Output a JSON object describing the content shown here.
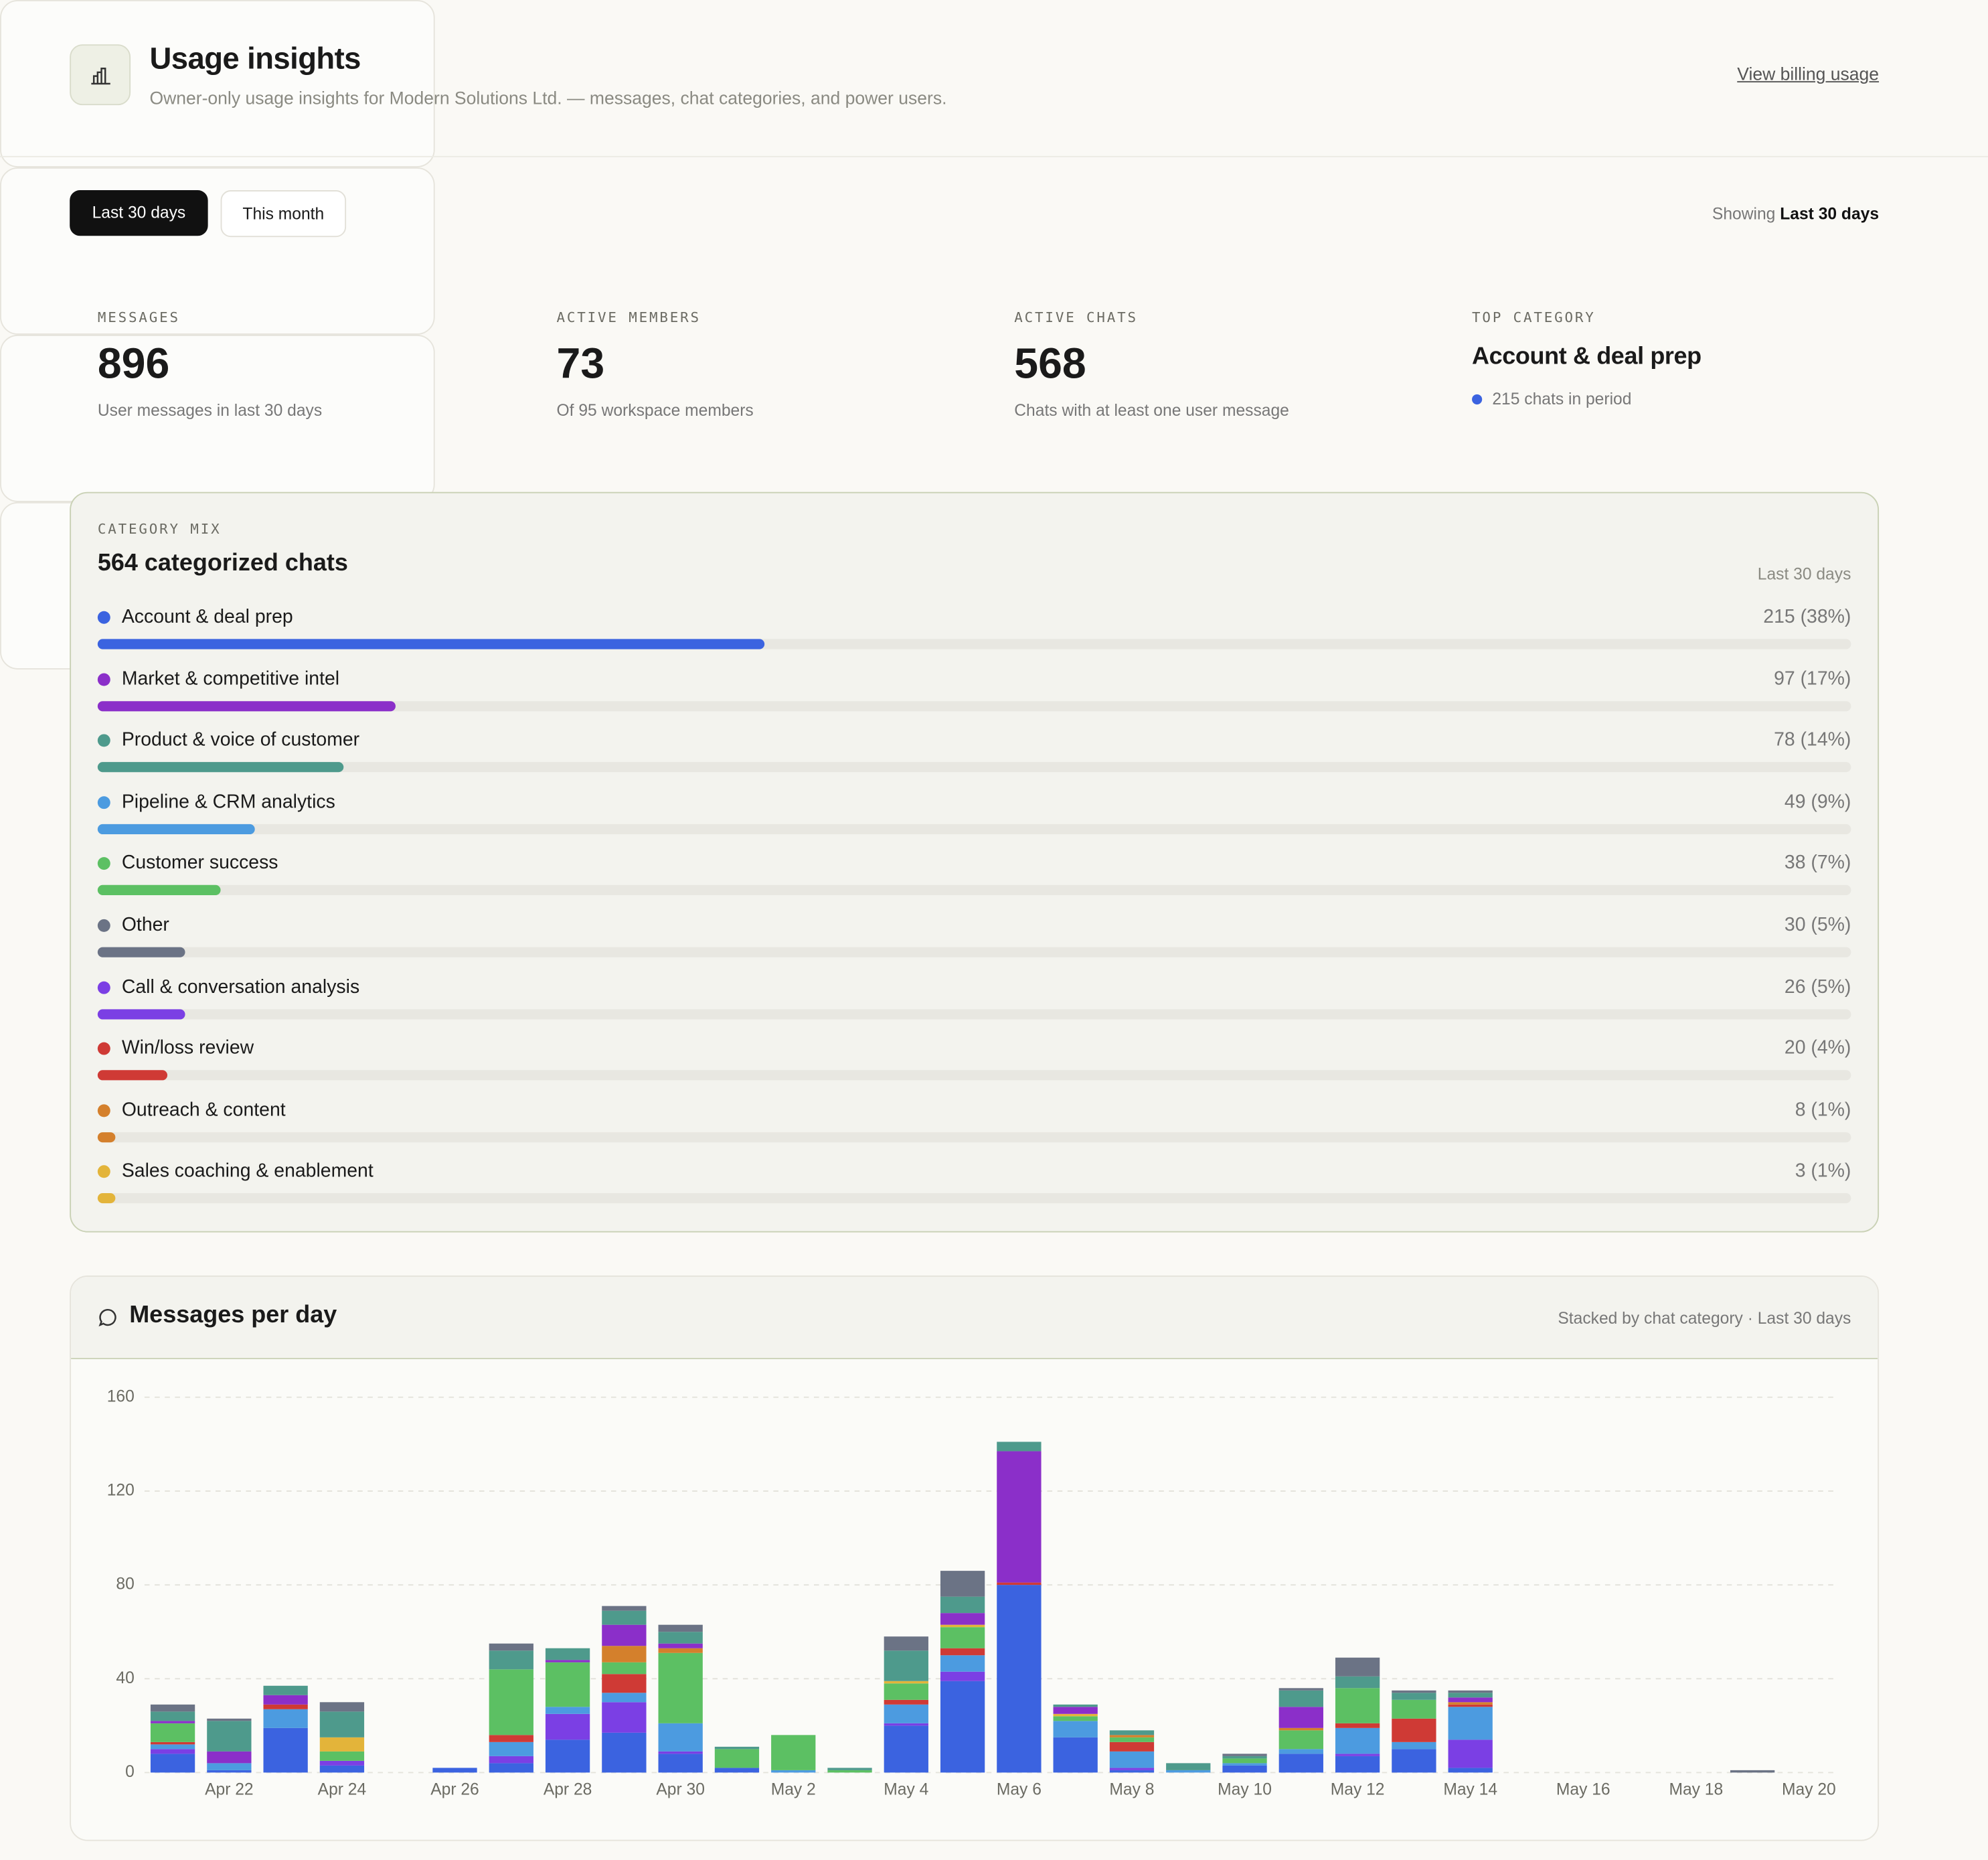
{
  "header": {
    "title": "Usage insights",
    "subtitle": "Owner-only usage insights for Modern Solutions Ltd. — messages, chat categories, and power users.",
    "link": "View billing usage"
  },
  "filters": {
    "options": [
      "Last 30 days",
      "This month"
    ],
    "showing_label": "Showing",
    "showing_value": "Last 30 days"
  },
  "kpis": [
    {
      "label": "MESSAGES",
      "value": 896,
      "note": "User messages in last 30 days"
    },
    {
      "label": "ACTIVE MEMBERS",
      "value": 73,
      "note": "Of 95 workspace members"
    },
    {
      "label": "ACTIVE CHATS",
      "value": 568,
      "note": "Chats with at least one user message"
    },
    {
      "label": "TOP CATEGORY",
      "value": "Account & deal prep",
      "note": "215 chats in period",
      "color": "#3b63e0"
    }
  ],
  "category_mix": {
    "label": "CATEGORY MIX",
    "title": "564 categorized chats",
    "period": "Last 30 days",
    "items": [
      {
        "name": "Account & deal prep",
        "color": "#3b63e0",
        "percent": 38,
        "value_label": "215 (38%)"
      },
      {
        "name": "Market & competitive intel",
        "color": "#8b2fc9",
        "percent": 17,
        "value_label": "97 (17%)"
      },
      {
        "name": "Product & voice of customer",
        "color": "#4e9a8c",
        "percent": 14,
        "value_label": "78 (14%)"
      },
      {
        "name": "Pipeline & CRM analytics",
        "color": "#4c9be0",
        "percent": 9,
        "value_label": "49 (9%)"
      },
      {
        "name": "Customer success",
        "color": "#5cc063",
        "percent": 7,
        "value_label": "38 (7%)"
      },
      {
        "name": "Other",
        "color": "#6b7385",
        "percent": 5,
        "value_label": "30 (5%)"
      },
      {
        "name": "Call & conversation analysis",
        "color": "#7b3fe4",
        "percent": 5,
        "value_label": "26 (5%)"
      },
      {
        "name": "Win/loss review",
        "color": "#cf3a35",
        "percent": 4,
        "value_label": "20 (4%)"
      },
      {
        "name": "Outreach & content",
        "color": "#d4802c",
        "percent": 1,
        "value_label": "8 (1%)"
      },
      {
        "name": "Sales coaching & enablement",
        "color": "#e3b43a",
        "percent": 1,
        "value_label": "3 (1%)"
      }
    ]
  },
  "chart_data": {
    "type": "bar",
    "stacked": true,
    "title": "Messages per day",
    "subtitle": "Stacked by chat category · Last 30 days",
    "categories": [
      null,
      "Apr 22",
      null,
      "Apr 24",
      null,
      "Apr 26",
      null,
      "Apr 28",
      null,
      "Apr 30",
      null,
      "May 2",
      null,
      "May 4",
      null,
      "May 6",
      null,
      "May 8",
      null,
      "May 10",
      null,
      "May 12",
      null,
      "May 14",
      null,
      "May 16",
      null,
      "May 18",
      null,
      "May 20"
    ],
    "series": [
      {
        "color": "#3b63e0",
        "values": [
          8,
          1,
          19,
          3,
          0,
          2,
          4,
          14,
          17,
          8,
          2,
          0,
          0,
          20,
          39,
          80,
          15,
          1,
          0,
          3,
          8,
          7,
          10,
          2,
          0,
          0,
          0,
          0,
          0,
          0
        ]
      },
      {
        "color": "#7b3fe4",
        "values": [
          2,
          0,
          0,
          2,
          0,
          0,
          3,
          11,
          13,
          1,
          0,
          0,
          0,
          1,
          4,
          0,
          0,
          1,
          0,
          0,
          0,
          1,
          0,
          12,
          0,
          0,
          0,
          0,
          0,
          0
        ]
      },
      {
        "color": "#4c9be0",
        "values": [
          2,
          3,
          8,
          0,
          0,
          0,
          6,
          3,
          4,
          12,
          0,
          1,
          0,
          8,
          7,
          0,
          7,
          7,
          1,
          1,
          2,
          11,
          3,
          14,
          0,
          0,
          0,
          0,
          0,
          0
        ]
      },
      {
        "color": "#cf3a35",
        "values": [
          1,
          0,
          2,
          0,
          0,
          0,
          3,
          0,
          8,
          0,
          0,
          0,
          0,
          2,
          3,
          1,
          0,
          4,
          0,
          0,
          0,
          2,
          10,
          1,
          0,
          0,
          0,
          0,
          0,
          0
        ]
      },
      {
        "color": "#5cc063",
        "values": [
          8,
          0,
          0,
          4,
          0,
          0,
          28,
          19,
          5,
          30,
          8,
          15,
          1,
          7,
          9,
          0,
          2,
          2,
          0,
          2,
          8,
          15,
          8,
          0,
          0,
          0,
          0,
          0,
          0,
          0
        ]
      },
      {
        "color": "#d4802c",
        "values": [
          0,
          0,
          0,
          0,
          0,
          0,
          0,
          0,
          7,
          2,
          0,
          0,
          0,
          0,
          0,
          0,
          0,
          1,
          0,
          0,
          1,
          0,
          0,
          1,
          0,
          0,
          0,
          0,
          0,
          0
        ]
      },
      {
        "color": "#e3b43a",
        "values": [
          0,
          0,
          0,
          6,
          0,
          0,
          0,
          0,
          0,
          0,
          0,
          0,
          0,
          1,
          1,
          0,
          1,
          0,
          0,
          0,
          0,
          0,
          0,
          0,
          0,
          0,
          0,
          0,
          0,
          0
        ]
      },
      {
        "color": "#8b2fc9",
        "values": [
          1,
          5,
          4,
          0,
          0,
          0,
          0,
          1,
          9,
          2,
          0,
          0,
          0,
          0,
          5,
          56,
          3,
          0,
          0,
          0,
          9,
          0,
          0,
          2,
          0,
          0,
          0,
          0,
          0,
          0
        ]
      },
      {
        "color": "#4e9a8c",
        "values": [
          4,
          13,
          4,
          11,
          0,
          0,
          8,
          5,
          6,
          5,
          1,
          0,
          1,
          13,
          7,
          4,
          1,
          2,
          3,
          1,
          7,
          5,
          3,
          2,
          0,
          0,
          0,
          0,
          0,
          0
        ]
      },
      {
        "color": "#6b7385",
        "values": [
          3,
          1,
          0,
          4,
          0,
          0,
          3,
          0,
          2,
          3,
          0,
          0,
          0,
          6,
          11,
          0,
          0,
          0,
          0,
          1,
          1,
          8,
          1,
          1,
          0,
          0,
          0,
          0,
          1,
          0
        ]
      }
    ],
    "ylim": [
      0,
      160
    ],
    "yticks": [
      0,
      40,
      80,
      120,
      160
    ],
    "grid": true
  }
}
